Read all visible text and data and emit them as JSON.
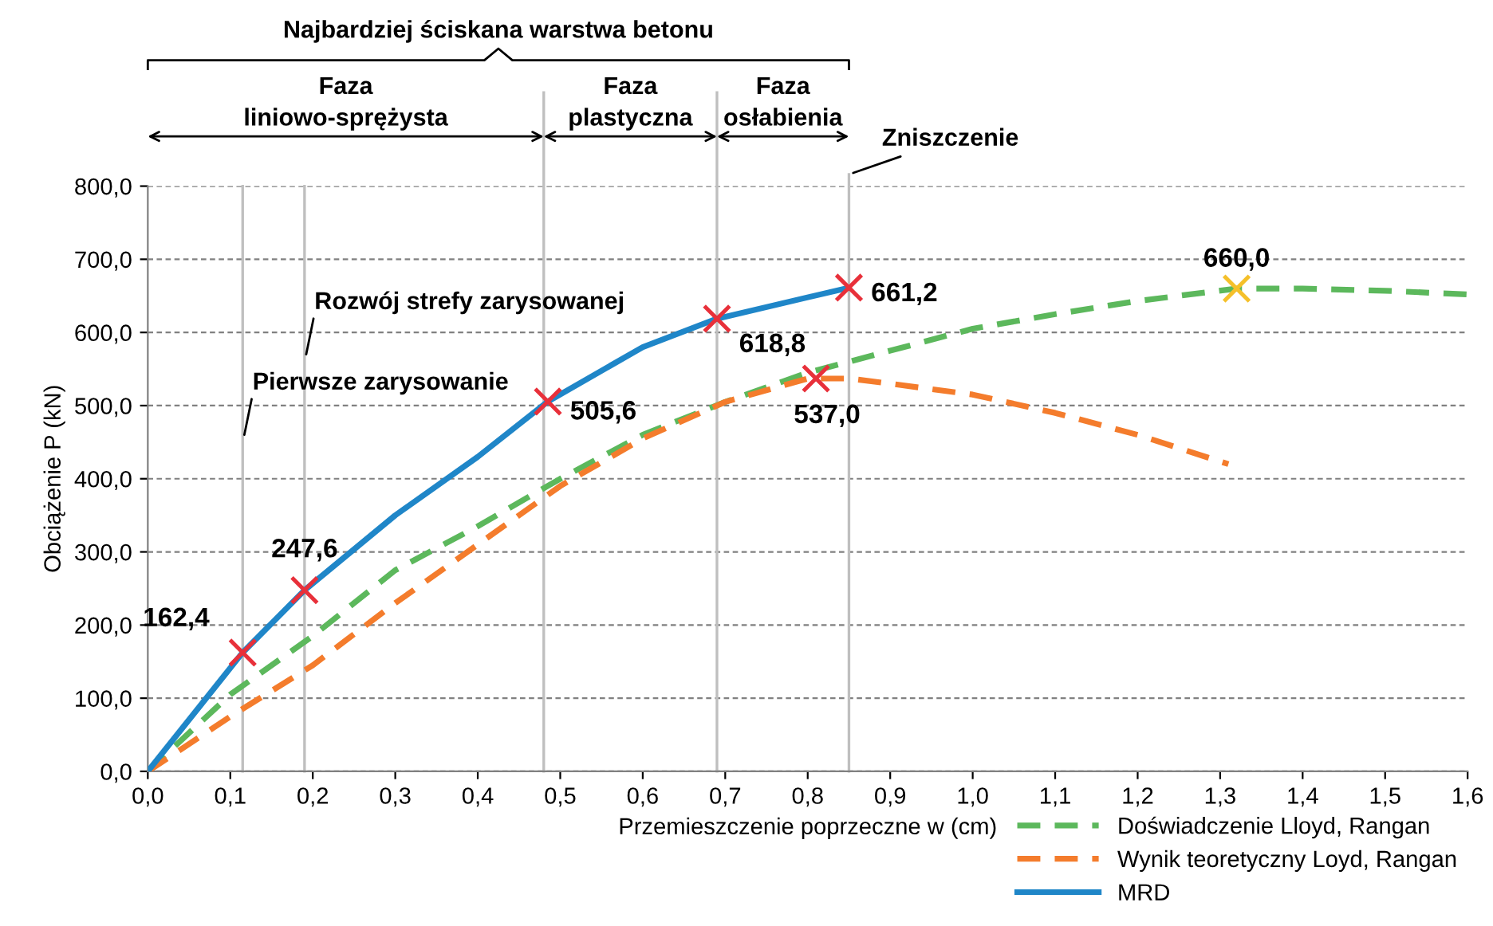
{
  "chart_data": {
    "type": "line",
    "xlabel": "Przemieszczenie poprzeczne w (cm)",
    "ylabel": "Obciążenie P (kN)",
    "xlim": [
      0,
      1.6
    ],
    "ylim": [
      0,
      800
    ],
    "xticks": [
      {
        "value": 0,
        "label": "0,0"
      },
      {
        "value": 0.1,
        "label": "0,1"
      },
      {
        "value": 0.2,
        "label": "0,2"
      },
      {
        "value": 0.3,
        "label": "0,3"
      },
      {
        "value": 0.4,
        "label": "0,4"
      },
      {
        "value": 0.5,
        "label": "0,5"
      },
      {
        "value": 0.6,
        "label": "0,6"
      },
      {
        "value": 0.7,
        "label": "0,7"
      },
      {
        "value": 0.8,
        "label": "0,8"
      },
      {
        "value": 0.9,
        "label": "0,9"
      },
      {
        "value": 1.0,
        "label": "1,0"
      },
      {
        "value": 1.1,
        "label": "1,1"
      },
      {
        "value": 1.2,
        "label": "1,2"
      },
      {
        "value": 1.3,
        "label": "1,3"
      },
      {
        "value": 1.4,
        "label": "1,4"
      },
      {
        "value": 1.5,
        "label": "1,5"
      },
      {
        "value": 1.6,
        "label": "1,6"
      }
    ],
    "yticks": [
      {
        "value": 0,
        "label": "0,0"
      },
      {
        "value": 100,
        "label": "100,0"
      },
      {
        "value": 200,
        "label": "200,0"
      },
      {
        "value": 300,
        "label": "300,0"
      },
      {
        "value": 400,
        "label": "400,0"
      },
      {
        "value": 500,
        "label": "500,0"
      },
      {
        "value": 600,
        "label": "600,0"
      },
      {
        "value": 700,
        "label": "700,0"
      },
      {
        "value": 800,
        "label": "800,0"
      }
    ],
    "grid": "y",
    "legend": "bottom right",
    "series": [
      {
        "name": "Doświadczenie Lloyd, Rangan",
        "color": "#5cb85c",
        "line_style": "dashed",
        "x": [
          0,
          0.1,
          0.2,
          0.3,
          0.4,
          0.5,
          0.6,
          0.7,
          0.8,
          0.9,
          1.0,
          1.1,
          1.2,
          1.32,
          1.4,
          1.5,
          1.6
        ],
        "values": [
          0,
          105,
          185,
          275,
          335,
          400,
          460,
          505,
          545,
          575,
          605,
          625,
          643,
          660,
          660,
          657,
          652
        ]
      },
      {
        "name": "Wynik teoretyczny Loyd, Rangan",
        "color": "#f47c2c",
        "line_style": "dashed",
        "x": [
          0,
          0.1,
          0.2,
          0.3,
          0.4,
          0.5,
          0.6,
          0.7,
          0.8,
          0.85,
          0.9,
          1.0,
          1.1,
          1.2,
          1.31
        ],
        "values": [
          0,
          75,
          145,
          230,
          310,
          390,
          455,
          505,
          537,
          537,
          530,
          515,
          490,
          460,
          420
        ]
      },
      {
        "name": "MRD",
        "color": "#1f86c8",
        "line_style": "solid",
        "x": [
          0,
          0.115,
          0.19,
          0.3,
          0.4,
          0.485,
          0.6,
          0.69,
          0.85
        ],
        "values": [
          0,
          162.4,
          247.6,
          350,
          430,
          505.6,
          580,
          618.8,
          661.2
        ]
      },
      {
        "type": "scatter",
        "marker": "cross",
        "color": "#e8303a",
        "x": [
          0.115,
          0.19,
          0.485,
          0.69,
          0.85,
          0.81
        ],
        "values": [
          162.4,
          247.6,
          505.6,
          618.8,
          661.2,
          537.0
        ],
        "value_labels": [
          "162,4",
          "247,6",
          "505,6",
          "618,8",
          "661,2",
          "537,0"
        ]
      },
      {
        "type": "scatter",
        "marker": "cross",
        "color": "#f5c02a",
        "x": [
          1.32
        ],
        "values": [
          660.0
        ],
        "value_labels": [
          "660,0"
        ]
      }
    ],
    "ref_lines": [
      {
        "axis": "x",
        "value": 0.115,
        "color": "#bfbfbf"
      },
      {
        "axis": "x",
        "value": 0.19,
        "color": "#bfbfbf"
      },
      {
        "axis": "x",
        "value": 0.48,
        "color": "#bfbfbf"
      },
      {
        "axis": "x",
        "value": 0.69,
        "color": "#bfbfbf"
      },
      {
        "axis": "x",
        "value": 0.85,
        "color": "#bfbfbf"
      }
    ],
    "annotations": [
      "Najbardziej ściskana warstwa betonu",
      "Faza\nliniowo-sprężysta",
      "Faza\nplastyczna",
      "Faza\nosłabienia",
      "Zniszczenie",
      {
        "text": "Pierwsze zarysowanie",
        "x": 0.115,
        "y": 460
      },
      {
        "text": "Rozwój strefy zarysowanej",
        "x": 0.19,
        "y": 570
      }
    ]
  }
}
